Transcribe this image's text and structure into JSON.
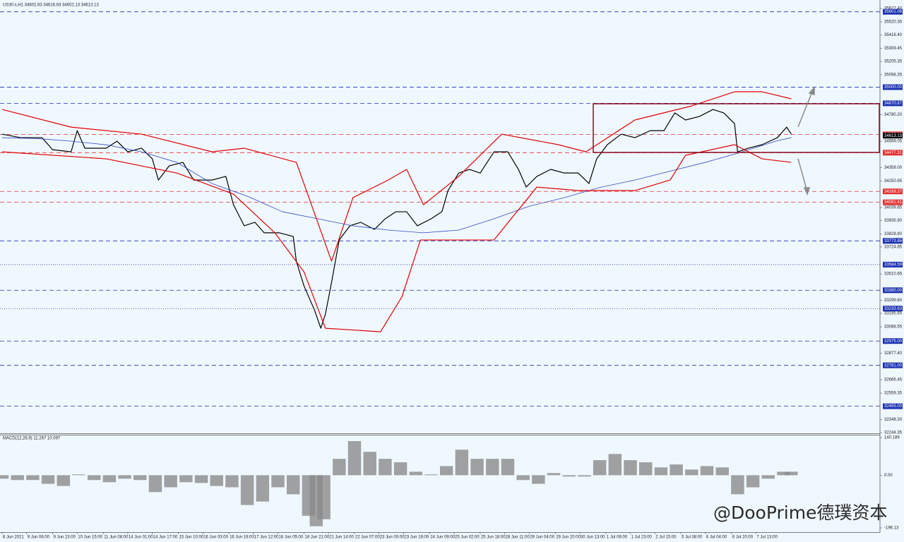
{
  "chart_data": [
    {
      "type": "line",
      "title": "US30.s,H1  34602.63 34616.63 34602.13 34613.13",
      "xlim": [
        0,
        572
      ],
      "ylim": [
        32239,
        35678
      ],
      "xticks": [
        {
          "value": 0,
          "label": "8 Jun 2021"
        },
        {
          "value": 16,
          "label": "9 Jun 06:00"
        },
        {
          "value": 33,
          "label": "9 Jun 23:00"
        },
        {
          "value": 49,
          "label": "10 Jun 15:00"
        },
        {
          "value": 66,
          "label": "11 Jun 08:00"
        },
        {
          "value": 82,
          "label": "14 Jun 01:00"
        },
        {
          "value": 98,
          "label": "14 Jun 17:00"
        },
        {
          "value": 115,
          "label": "15 Jun 10:00"
        },
        {
          "value": 131,
          "label": "16 Jun 03:00"
        },
        {
          "value": 148,
          "label": "16 Jun 19:00"
        },
        {
          "value": 164,
          "label": "17 Jun 12:00"
        },
        {
          "value": 180,
          "label": "18 Jun 05:00"
        },
        {
          "value": 197,
          "label": "18 Jun 21:00"
        },
        {
          "value": 213,
          "label": "21 Jun 14:00"
        },
        {
          "value": 230,
          "label": "22 Jun 07:00"
        },
        {
          "value": 246,
          "label": "23 Jun 00:00"
        },
        {
          "value": 262,
          "label": "23 Jun 16:00"
        },
        {
          "value": 279,
          "label": "24 Jun 09:00"
        },
        {
          "value": 295,
          "label": "25 Jun 02:00"
        },
        {
          "value": 312,
          "label": "25 Jun 18:00"
        },
        {
          "value": 328,
          "label": "28 Jun 11:00"
        },
        {
          "value": 344,
          "label": "29 Jun 04:00"
        },
        {
          "value": 361,
          "label": "29 Jun 20:00"
        },
        {
          "value": 377,
          "label": "30 Jun 13:00"
        },
        {
          "value": 394,
          "label": "1 Jul 06:00"
        },
        {
          "value": 410,
          "label": "1 Jul 23:00"
        },
        {
          "value": 426,
          "label": "2 Jul 15:00"
        },
        {
          "value": 443,
          "label": "5 Jul 08:00"
        },
        {
          "value": 459,
          "label": "6 Jul 04:00"
        },
        {
          "value": 476,
          "label": "6 Jul 20:00"
        },
        {
          "value": 492,
          "label": "7 Jul 13:00"
        }
      ],
      "yticks": [
        {
          "value": 35627.4,
          "label": "35627.40"
        },
        35520.35,
        {
          "value": 35416.4,
          "label": "35416.40"
        },
        35309.45,
        35205.35,
        35098.35,
        {
          "value": 34780.2,
          "label": "34780.20"
        },
        34569.05,
        {
          "value": 34358,
          "label": "34358.00"
        },
        34250.95,
        34039.85,
        {
          "value": 33935.9,
          "label": "33935.90"
        },
        {
          "value": 33828.8,
          "label": "33828.80"
        },
        33724.85,
        33510.65,
        {
          "value": 33299.6,
          "label": "33299.60"
        },
        33195.65,
        33088.55,
        {
          "value": 32877.4,
          "label": "32877.40"
        },
        32666.45,
        32559.35,
        {
          "value": 32348.3,
          "label": "32348.30"
        },
        32244.35
      ],
      "levels": [
        {
          "value": 35601.06,
          "color": "#1a2fb0",
          "style": "dash"
        },
        {
          "value": 35000,
          "label": "35000.00",
          "color": "#1a2fb0",
          "style": "dash"
        },
        {
          "value": 34870.87,
          "color": "#1a2fb0",
          "style": "dash"
        },
        {
          "value": 34623.24,
          "color": "#e03030",
          "style": "dash"
        },
        {
          "value": 34477.31,
          "color": "#e03030",
          "style": "dash"
        },
        {
          "value": 34168.37,
          "color": "#e03030",
          "style": "dash"
        },
        {
          "value": 34081.61,
          "color": "#e03030",
          "style": "dash"
        },
        {
          "value": 33773.86,
          "color": "#1a2fb0",
          "style": "dash"
        },
        {
          "value": 33584.59,
          "color": "#1a2fb0",
          "style": "dot"
        },
        {
          "value": 33380,
          "label": "33380.00",
          "color": "#1a2fb0",
          "style": "dash"
        },
        {
          "value": 33233.63,
          "color": "#1a2fb0",
          "style": "dot"
        },
        {
          "value": 32975,
          "label": "32975.00",
          "color": "#1a2fb0",
          "style": "dash"
        },
        {
          "value": 32781,
          "label": "32781.00",
          "color": "#1a2fb0",
          "style": "dash"
        },
        {
          "value": 32455,
          "label": "32455.00",
          "color": "#1a2fb0",
          "style": "dash"
        }
      ],
      "last_price": 34613.13,
      "series": [
        {
          "color": "#000000",
          "width": 1.2,
          "x": [
            0,
            12,
            26,
            33,
            45,
            49,
            54,
            68,
            75,
            82,
            91,
            98,
            102,
            109,
            118,
            125,
            137,
            146,
            151,
            158,
            165,
            171,
            181,
            190,
            192,
            197,
            204,
            208,
            211,
            215,
            220,
            227,
            234,
            243,
            250,
            257,
            264,
            271,
            280,
            287,
            291,
            298,
            305,
            312,
            321,
            330,
            337,
            342,
            349,
            358,
            367,
            376,
            383,
            388,
            395,
            404,
            413,
            423,
            432,
            439,
            446,
            455,
            464,
            471,
            478,
            480,
            487,
            496,
            506,
            512,
            515
          ],
          "values": [
            34625,
            34597,
            34597,
            34501,
            34484,
            34653,
            34513,
            34513,
            34569,
            34484,
            34513,
            34428,
            34259,
            34372,
            34400,
            34259,
            34259,
            34288,
            34062,
            33894,
            33922,
            33838,
            33838,
            33809,
            33612,
            33415,
            33218,
            33077,
            33190,
            33443,
            33781,
            33894,
            33922,
            33865,
            33950,
            34006,
            34006,
            33894,
            33950,
            34006,
            34175,
            34315,
            34344,
            34315,
            34484,
            34484,
            34344,
            34203,
            34288,
            34344,
            34315,
            34315,
            34231,
            34428,
            34541,
            34625,
            34597,
            34653,
            34653,
            34794,
            34738,
            34766,
            34822,
            34794,
            34709,
            34484,
            34513,
            34541,
            34597,
            34681,
            34625
          ]
        },
        {
          "color": "#3348c8",
          "width": 0.8,
          "x": [
            0,
            23,
            45,
            68,
            91,
            114,
            137,
            160,
            183,
            206,
            229,
            252,
            275,
            298,
            321,
            344,
            367,
            390,
            413,
            436,
            459,
            482,
            505,
            515
          ],
          "values": [
            34597,
            34590,
            34569,
            34540,
            34484,
            34400,
            34231,
            34130,
            34006,
            33950,
            33894,
            33860,
            33838,
            33860,
            33950,
            34050,
            34119,
            34200,
            34259,
            34330,
            34400,
            34480,
            34569,
            34597
          ]
        },
        {
          "color": "#e00000",
          "width": 1.2,
          "x": [
            0,
            45,
            91,
            137,
            158,
            192,
            215,
            229,
            252,
            264,
            275,
            298,
            326,
            363,
            381,
            413,
            450,
            478,
            496,
            515
          ],
          "values": [
            34822,
            34681,
            34625,
            34484,
            34513,
            34400,
            33612,
            34119,
            34259,
            34344,
            34062,
            34288,
            34625,
            34541,
            34484,
            34738,
            34850,
            34963,
            34963,
            34907
          ]
        },
        {
          "color": "#e00000",
          "width": 1.2,
          "x": [
            0,
            68,
            114,
            151,
            178,
            197,
            211,
            247,
            261,
            273,
            298,
            321,
            349,
            376,
            413,
            436,
            446,
            478,
            496,
            515
          ],
          "values": [
            34484,
            34428,
            34315,
            34147,
            33838,
            33527,
            33077,
            33049,
            33330,
            33781,
            33781,
            33781,
            34203,
            34175,
            34175,
            34259,
            34456,
            34541,
            34428,
            34400
          ]
        }
      ]
    },
    {
      "type": "bar",
      "title": "MACD(12,26,9) 11.267 10.097",
      "color": "#8a8a8a",
      "xlim": [
        0,
        572
      ],
      "ylim": [
        -196.13,
        140.189
      ],
      "yticks": [
        140.189,
        {
          "value": 0,
          "label": "0.00"
        },
        -196.13
      ],
      "x": [
        0,
        10,
        20,
        30,
        40,
        50,
        60,
        70,
        80,
        90,
        100,
        110,
        120,
        130,
        140,
        150,
        160,
        170,
        180,
        190,
        200,
        205,
        210,
        220,
        230,
        240,
        250,
        260,
        270,
        280,
        290,
        300,
        310,
        320,
        330,
        340,
        350,
        360,
        370,
        380,
        390,
        400,
        410,
        420,
        430,
        440,
        450,
        460,
        470,
        480,
        490,
        500,
        510,
        515
      ],
      "values": [
        -13,
        -18,
        -18,
        -32,
        -40,
        3,
        -18,
        -26,
        -13,
        -18,
        -63,
        -45,
        -26,
        -29,
        -40,
        -45,
        -111,
        -98,
        -45,
        -71,
        -151,
        -190,
        -164,
        61,
        127,
        87,
        61,
        48,
        13,
        3,
        34,
        95,
        61,
        61,
        61,
        -18,
        -32,
        8,
        -5,
        -5,
        56,
        79,
        56,
        48,
        29,
        40,
        21,
        34,
        29,
        -71,
        -45,
        -13,
        13,
        13
      ]
    }
  ],
  "watermark": "@DooPrime德璞资本"
}
